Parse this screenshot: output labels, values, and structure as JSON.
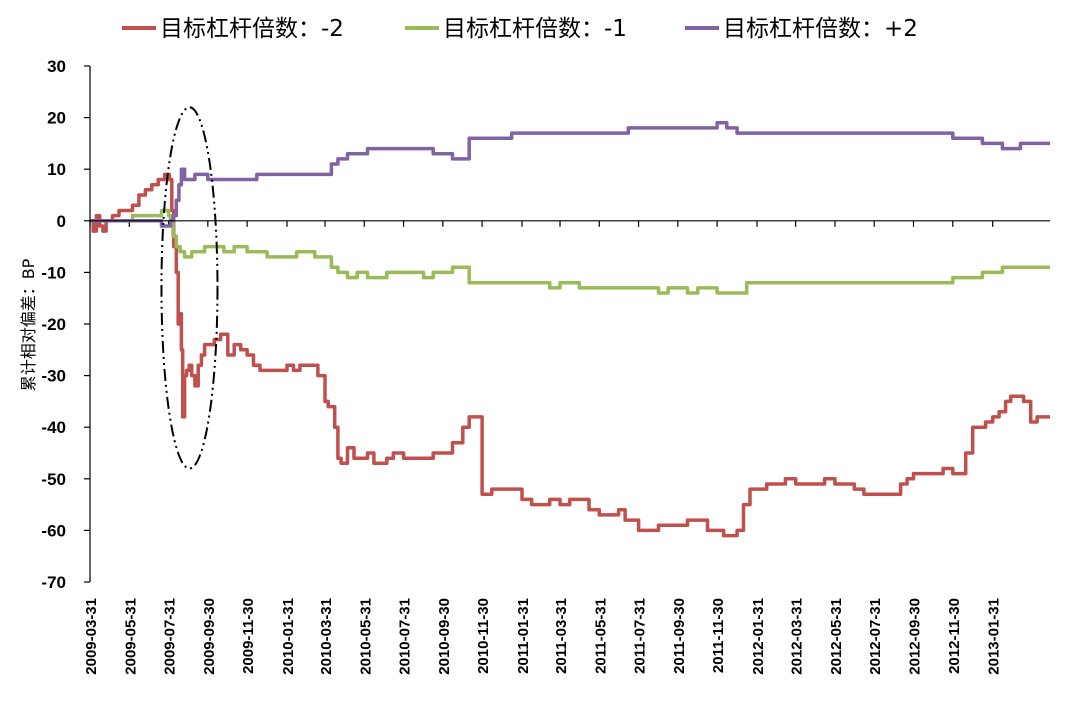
{
  "chart_data": {
    "type": "line",
    "title": "",
    "xlabel": "",
    "ylabel": "累计相对偏差：BP",
    "ylim": [
      -70,
      30
    ],
    "yticks": [
      30,
      20,
      10,
      0,
      -10,
      -20,
      -30,
      -40,
      -50,
      -60,
      -70
    ],
    "grid": false,
    "legend_position": "top",
    "x_ticks": [
      "2009-03-31",
      "2009-05-31",
      "2009-07-31",
      "2009-09-30",
      "2009-11-30",
      "2010-01-31",
      "2010-03-31",
      "2010-05-31",
      "2010-07-31",
      "2010-09-30",
      "2010-11-30",
      "2011-01-31",
      "2011-03-31",
      "2011-05-31",
      "2011-07-31",
      "2011-09-30",
      "2011-11-30",
      "2012-01-31",
      "2012-03-31",
      "2012-05-31",
      "2012-07-31",
      "2012-09-30",
      "2012-11-30",
      "2013-01-31"
    ],
    "x_range": [
      "2009-03-31",
      "2013-04-30"
    ],
    "annotation": {
      "type": "dash-dot-ellipse",
      "x_range": [
        "2009-07-20",
        "2009-10-15"
      ],
      "y_range": [
        -48,
        22
      ]
    },
    "series": [
      {
        "name": "目标杠杆倍数：-2",
        "color": "#c0504d",
        "x": [
          "2009-03-31",
          "2009-04-05",
          "2009-04-10",
          "2009-04-15",
          "2009-04-20",
          "2009-04-25",
          "2009-05-05",
          "2009-05-15",
          "2009-05-25",
          "2009-06-05",
          "2009-06-15",
          "2009-06-25",
          "2009-07-05",
          "2009-07-15",
          "2009-07-25",
          "2009-08-01",
          "2009-08-05",
          "2009-08-08",
          "2009-08-12",
          "2009-08-15",
          "2009-08-18",
          "2009-08-20",
          "2009-08-22",
          "2009-08-25",
          "2009-08-28",
          "2009-09-01",
          "2009-09-05",
          "2009-09-10",
          "2009-09-15",
          "2009-09-20",
          "2009-09-25",
          "2009-10-01",
          "2009-10-10",
          "2009-10-20",
          "2009-10-31",
          "2009-11-10",
          "2009-11-20",
          "2009-11-30",
          "2009-12-10",
          "2009-12-20",
          "2009-12-31",
          "2010-01-10",
          "2010-01-20",
          "2010-01-31",
          "2010-02-10",
          "2010-02-20",
          "2010-02-28",
          "2010-03-10",
          "2010-03-20",
          "2010-03-31",
          "2010-04-05",
          "2010-04-15",
          "2010-04-20",
          "2010-04-25",
          "2010-05-05",
          "2010-05-15",
          "2010-05-25",
          "2010-06-05",
          "2010-06-15",
          "2010-06-25",
          "2010-07-05",
          "2010-07-15",
          "2010-07-31",
          "2010-08-15",
          "2010-08-31",
          "2010-09-15",
          "2010-09-30",
          "2010-10-15",
          "2010-10-31",
          "2010-11-10",
          "2010-11-20",
          "2010-11-30",
          "2010-12-15",
          "2010-12-31",
          "2011-01-15",
          "2011-01-31",
          "2011-02-15",
          "2011-02-28",
          "2011-03-15",
          "2011-03-31",
          "2011-04-15",
          "2011-04-30",
          "2011-05-15",
          "2011-05-31",
          "2011-06-15",
          "2011-06-30",
          "2011-07-10",
          "2011-07-20",
          "2011-07-31",
          "2011-08-15",
          "2011-08-31",
          "2011-09-15",
          "2011-09-30",
          "2011-10-15",
          "2011-10-31",
          "2011-11-15",
          "2011-11-30",
          "2011-12-10",
          "2011-12-20",
          "2011-12-31",
          "2012-01-10",
          "2012-01-20",
          "2012-01-31",
          "2012-02-15",
          "2012-02-29",
          "2012-03-15",
          "2012-03-31",
          "2012-04-15",
          "2012-04-30",
          "2012-05-15",
          "2012-05-31",
          "2012-06-15",
          "2012-06-30",
          "2012-07-15",
          "2012-07-31",
          "2012-08-15",
          "2012-08-31",
          "2012-09-10",
          "2012-09-20",
          "2012-09-30",
          "2012-10-15",
          "2012-10-31",
          "2012-11-15",
          "2012-11-30",
          "2012-12-10",
          "2012-12-20",
          "2012-12-31",
          "2013-01-10",
          "2013-01-20",
          "2013-01-31",
          "2013-02-10",
          "2013-02-20",
          "2013-02-28",
          "2013-03-10",
          "2013-03-20",
          "2013-03-31",
          "2013-04-10",
          "2013-04-20",
          "2013-04-30"
        ],
        "values": [
          0,
          -2,
          1,
          -1,
          -2,
          0,
          1,
          2,
          2,
          3,
          5,
          6,
          7,
          8,
          9,
          8,
          2,
          -5,
          -10,
          -20,
          -18,
          -25,
          -38,
          -30,
          -29,
          -28,
          -30,
          -32,
          -28,
          -26,
          -24,
          -24,
          -23,
          -22,
          -26,
          -24,
          -25,
          -26,
          -28,
          -29,
          -29,
          -29,
          -29,
          -28,
          -29,
          -28,
          -28,
          -28,
          -30,
          -35,
          -36,
          -40,
          -46,
          -47,
          -44,
          -46,
          -46,
          -45,
          -47,
          -47,
          -46,
          -45,
          -46,
          -46,
          -46,
          -45,
          -45,
          -43,
          -40,
          -38,
          -38,
          -53,
          -52,
          -52,
          -52,
          -54,
          -55,
          -55,
          -54,
          -55,
          -54,
          -54,
          -56,
          -57,
          -57,
          -56,
          -58,
          -58,
          -60,
          -60,
          -59,
          -59,
          -59,
          -58,
          -58,
          -60,
          -60,
          -61,
          -61,
          -60,
          -55,
          -52,
          -52,
          -51,
          -51,
          -50,
          -51,
          -51,
          -51,
          -50,
          -51,
          -51,
          -52,
          -53,
          -53,
          -53,
          -53,
          -51,
          -50,
          -49,
          -49,
          -49,
          -48,
          -49,
          -49,
          -45,
          -40,
          -40,
          -39,
          -38,
          -37,
          -35,
          -34,
          -34,
          -35,
          -39,
          -38,
          -38,
          -38
        ]
      },
      {
        "name": "目标杠杆倍数：-1",
        "color": "#9bbb59",
        "x": [
          "2009-03-31",
          "2009-04-10",
          "2009-04-20",
          "2009-05-05",
          "2009-05-20",
          "2009-06-05",
          "2009-06-20",
          "2009-07-05",
          "2009-07-20",
          "2009-07-31",
          "2009-08-03",
          "2009-08-07",
          "2009-08-12",
          "2009-08-18",
          "2009-08-25",
          "2009-09-05",
          "2009-09-15",
          "2009-09-25",
          "2009-10-10",
          "2009-10-25",
          "2009-11-10",
          "2009-11-30",
          "2009-12-15",
          "2009-12-31",
          "2010-01-15",
          "2010-01-31",
          "2010-02-15",
          "2010-02-28",
          "2010-03-15",
          "2010-03-31",
          "2010-04-10",
          "2010-04-20",
          "2010-05-05",
          "2010-05-20",
          "2010-06-05",
          "2010-06-20",
          "2010-07-05",
          "2010-07-31",
          "2010-08-15",
          "2010-08-31",
          "2010-09-15",
          "2010-09-30",
          "2010-10-15",
          "2010-10-31",
          "2010-11-10",
          "2010-11-20",
          "2010-11-30",
          "2010-12-15",
          "2010-12-31",
          "2011-01-15",
          "2011-01-31",
          "2011-02-15",
          "2011-02-28",
          "2011-03-15",
          "2011-03-31",
          "2011-04-15",
          "2011-04-30",
          "2011-05-15",
          "2011-05-31",
          "2011-06-15",
          "2011-06-30",
          "2011-07-15",
          "2011-07-31",
          "2011-08-15",
          "2011-08-31",
          "2011-09-15",
          "2011-09-30",
          "2011-10-15",
          "2011-10-31",
          "2011-11-15",
          "2011-11-30",
          "2011-12-15",
          "2011-12-31",
          "2012-01-15",
          "2012-01-31",
          "2012-02-15",
          "2012-02-29",
          "2012-03-15",
          "2012-03-31",
          "2012-04-15",
          "2012-04-30",
          "2012-05-15",
          "2012-05-31",
          "2012-06-15",
          "2012-06-30",
          "2012-07-15",
          "2012-07-31",
          "2012-08-15",
          "2012-08-31",
          "2012-09-15",
          "2012-09-30",
          "2012-10-15",
          "2012-10-31",
          "2012-11-15",
          "2012-11-30",
          "2012-12-15",
          "2012-12-31",
          "2013-01-15",
          "2013-01-31",
          "2013-02-15",
          "2013-02-28",
          "2013-03-15",
          "2013-03-31",
          "2013-04-15",
          "2013-04-30"
        ],
        "values": [
          0,
          0,
          0,
          0,
          0,
          1,
          1,
          1,
          2,
          1,
          0,
          -3,
          -5,
          -6,
          -7,
          -6,
          -6,
          -5,
          -5,
          -6,
          -5,
          -6,
          -6,
          -7,
          -7,
          -7,
          -6,
          -6,
          -7,
          -7,
          -9,
          -10,
          -11,
          -10,
          -11,
          -11,
          -10,
          -10,
          -10,
          -11,
          -10,
          -10,
          -9,
          -9,
          -12,
          -12,
          -12,
          -12,
          -12,
          -12,
          -12,
          -12,
          -12,
          -13,
          -12,
          -12,
          -13,
          -13,
          -13,
          -13,
          -13,
          -13,
          -13,
          -13,
          -14,
          -13,
          -13,
          -14,
          -13,
          -13,
          -14,
          -14,
          -14,
          -12,
          -12,
          -12,
          -12,
          -12,
          -12,
          -12,
          -12,
          -12,
          -12,
          -12,
          -12,
          -12,
          -12,
          -12,
          -12,
          -12,
          -12,
          -12,
          -12,
          -12,
          -11,
          -11,
          -11,
          -10,
          -10,
          -9,
          -9,
          -9,
          -9,
          -9,
          -9
        ]
      },
      {
        "name": "目标杠杆倍数：+2",
        "color": "#8064a2",
        "x": [
          "2009-03-31",
          "2009-04-10",
          "2009-04-20",
          "2009-05-05",
          "2009-05-20",
          "2009-06-05",
          "2009-06-20",
          "2009-07-05",
          "2009-07-20",
          "2009-07-31",
          "2009-08-03",
          "2009-08-07",
          "2009-08-12",
          "2009-08-16",
          "2009-08-20",
          "2009-08-25",
          "2009-09-01",
          "2009-09-10",
          "2009-09-20",
          "2009-09-30",
          "2009-10-15",
          "2009-10-31",
          "2009-11-15",
          "2009-11-30",
          "2009-12-15",
          "2009-12-31",
          "2010-01-15",
          "2010-01-31",
          "2010-02-15",
          "2010-02-28",
          "2010-03-15",
          "2010-03-31",
          "2010-04-10",
          "2010-04-20",
          "2010-05-05",
          "2010-05-20",
          "2010-06-05",
          "2010-06-20",
          "2010-07-05",
          "2010-07-31",
          "2010-08-15",
          "2010-08-31",
          "2010-09-15",
          "2010-09-30",
          "2010-10-15",
          "2010-10-31",
          "2010-11-10",
          "2010-11-20",
          "2010-11-30",
          "2010-12-15",
          "2010-12-31",
          "2011-01-15",
          "2011-01-31",
          "2011-02-15",
          "2011-02-28",
          "2011-03-15",
          "2011-03-31",
          "2011-04-15",
          "2011-04-30",
          "2011-05-15",
          "2011-05-31",
          "2011-06-15",
          "2011-06-30",
          "2011-07-15",
          "2011-07-31",
          "2011-08-15",
          "2011-08-31",
          "2011-09-15",
          "2011-09-30",
          "2011-10-15",
          "2011-10-31",
          "2011-11-15",
          "2011-11-30",
          "2011-12-15",
          "2011-12-31",
          "2012-01-15",
          "2012-01-31",
          "2012-02-15",
          "2012-02-29",
          "2012-03-15",
          "2012-03-31",
          "2012-04-15",
          "2012-04-30",
          "2012-05-15",
          "2012-05-31",
          "2012-06-15",
          "2012-06-30",
          "2012-07-15",
          "2012-07-31",
          "2012-08-15",
          "2012-08-31",
          "2012-09-15",
          "2012-09-30",
          "2012-10-15",
          "2012-10-31",
          "2012-11-15",
          "2012-11-30",
          "2012-12-15",
          "2012-12-31",
          "2013-01-15",
          "2013-01-31",
          "2013-02-15",
          "2013-02-28",
          "2013-03-15",
          "2013-03-31",
          "2013-04-15",
          "2013-04-30"
        ],
        "values": [
          0,
          0,
          0,
          0,
          0,
          0,
          0,
          0,
          -1,
          -1,
          0,
          1,
          4,
          7,
          10,
          8,
          8,
          9,
          9,
          8,
          8,
          8,
          8,
          8,
          9,
          9,
          9,
          9,
          9,
          9,
          9,
          9,
          11,
          12,
          13,
          13,
          14,
          14,
          14,
          14,
          14,
          14,
          13,
          13,
          12,
          12,
          16,
          16,
          16,
          16,
          16,
          17,
          17,
          17,
          17,
          17,
          17,
          17,
          17,
          17,
          17,
          17,
          17,
          18,
          18,
          18,
          18,
          18,
          18,
          18,
          18,
          18,
          19,
          18,
          17,
          17,
          17,
          17,
          17,
          17,
          17,
          17,
          17,
          17,
          17,
          17,
          17,
          17,
          17,
          17,
          17,
          17,
          17,
          17,
          17,
          17,
          16,
          16,
          16,
          15,
          15,
          14,
          14,
          15,
          15,
          15,
          15
        ]
      }
    ]
  }
}
